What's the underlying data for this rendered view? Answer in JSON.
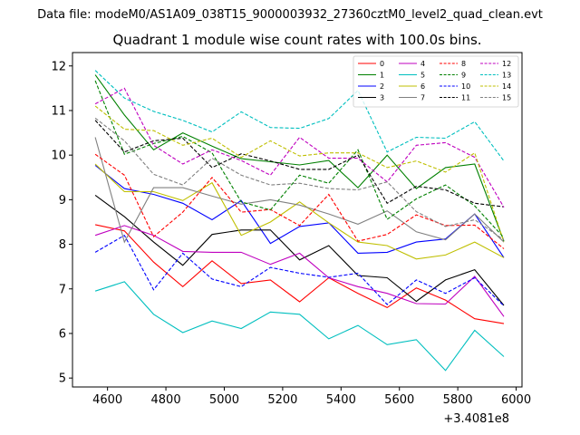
{
  "figure": {
    "suptitle": "Data file: modeM0/AS1A09_038T15_9000003932_27360cztM0_level2_quad_clean.evt"
  },
  "chart_data": {
    "type": "line",
    "title": "Quadrant 1 module wise count rates with 100.0s bins.",
    "xlabel": "",
    "ylabel": "",
    "x_offset_label": "+3.4081e8",
    "xlim": [
      4480,
      6020
    ],
    "ylim": [
      4.8,
      12.3
    ],
    "x_ticks": [
      4600,
      4800,
      5000,
      5200,
      5400,
      5600,
      5800,
      6000
    ],
    "y_ticks": [
      5,
      6,
      7,
      8,
      9,
      10,
      11,
      12
    ],
    "x": [
      4558,
      4658,
      4758,
      4858,
      4958,
      5058,
      5158,
      5258,
      5358,
      5458,
      5558,
      5658,
      5758,
      5858,
      5958
    ],
    "legend_position": "top-right",
    "series": [
      {
        "name": "0",
        "color": "#ff0000",
        "dash": "solid",
        "values": [
          8.44,
          8.3,
          7.6,
          7.05,
          7.63,
          7.12,
          7.2,
          6.71,
          7.25,
          6.9,
          6.58,
          7.02,
          6.75,
          6.33,
          6.22
        ]
      },
      {
        "name": "1",
        "color": "#008000",
        "dash": "solid",
        "values": [
          11.8,
          10.9,
          10.12,
          10.5,
          10.2,
          9.92,
          9.85,
          9.78,
          9.88,
          9.27,
          10.0,
          9.25,
          9.72,
          9.8,
          8.07
        ]
      },
      {
        "name": "2",
        "color": "#0000ff",
        "dash": "solid",
        "values": [
          9.77,
          9.25,
          9.12,
          8.92,
          8.55,
          8.98,
          8.02,
          8.4,
          8.48,
          7.8,
          7.82,
          8.05,
          8.12,
          8.68,
          7.7
        ]
      },
      {
        "name": "3",
        "color": "#000000",
        "dash": "solid",
        "values": [
          9.1,
          8.62,
          8.05,
          7.53,
          8.22,
          8.32,
          8.32,
          7.65,
          7.97,
          7.3,
          7.25,
          6.72,
          7.2,
          7.43,
          6.63
        ]
      },
      {
        "name": "4",
        "color": "#bf00bf",
        "dash": "solid",
        "values": [
          8.2,
          8.42,
          8.2,
          7.84,
          7.82,
          7.82,
          7.55,
          7.8,
          7.25,
          7.05,
          6.9,
          6.67,
          6.66,
          7.28,
          6.38
        ]
      },
      {
        "name": "5",
        "color": "#00bfbf",
        "dash": "solid",
        "values": [
          6.95,
          7.16,
          6.43,
          6.02,
          6.28,
          6.11,
          6.48,
          6.43,
          5.88,
          6.18,
          5.75,
          5.86,
          5.17,
          6.07,
          5.48
        ]
      },
      {
        "name": "6",
        "color": "#bfbf00",
        "dash": "solid",
        "values": [
          9.8,
          9.18,
          9.18,
          8.98,
          9.38,
          8.2,
          8.5,
          8.95,
          8.48,
          8.05,
          7.97,
          7.67,
          7.76,
          8.05,
          7.7
        ]
      },
      {
        "name": "7",
        "color": "#808080",
        "dash": "solid",
        "values": [
          10.4,
          8.05,
          9.27,
          9.27,
          9.08,
          8.9,
          9.0,
          8.88,
          8.68,
          8.45,
          8.75,
          8.28,
          8.1,
          8.68,
          8.05
        ]
      },
      {
        "name": "8",
        "color": "#ff0000",
        "dash": "dashed",
        "values": [
          10.02,
          9.55,
          8.17,
          8.72,
          9.5,
          8.72,
          8.78,
          8.42,
          9.12,
          8.07,
          8.22,
          8.66,
          8.42,
          8.43,
          7.9
        ]
      },
      {
        "name": "9",
        "color": "#008000",
        "dash": "dashed",
        "values": [
          11.67,
          10.02,
          10.26,
          10.42,
          10.05,
          8.95,
          8.77,
          9.55,
          9.37,
          10.12,
          8.56,
          9.02,
          9.33,
          8.86,
          8.15
        ]
      },
      {
        "name": "10",
        "color": "#0000ff",
        "dash": "dashed",
        "values": [
          7.82,
          8.2,
          6.98,
          7.8,
          7.22,
          7.05,
          7.48,
          7.35,
          7.26,
          7.35,
          6.65,
          7.2,
          6.9,
          7.25,
          6.62
        ]
      },
      {
        "name": "11",
        "color": "#000000",
        "dash": "dashed",
        "values": [
          10.78,
          10.07,
          10.32,
          10.38,
          9.72,
          10.03,
          9.87,
          9.68,
          9.68,
          10.0,
          8.92,
          9.3,
          9.22,
          8.92,
          8.84
        ]
      },
      {
        "name": "12",
        "color": "#bf00bf",
        "dash": "dashed",
        "values": [
          11.15,
          11.5,
          10.22,
          9.8,
          10.12,
          9.88,
          9.55,
          10.4,
          9.93,
          9.93,
          9.4,
          10.22,
          10.28,
          9.95,
          8.83
        ]
      },
      {
        "name": "13",
        "color": "#00bfbf",
        "dash": "dashed",
        "values": [
          11.9,
          11.28,
          10.98,
          10.78,
          10.52,
          10.97,
          10.62,
          10.6,
          10.82,
          11.45,
          10.07,
          10.4,
          10.38,
          10.75,
          9.87
        ]
      },
      {
        "name": "14",
        "color": "#bfbf00",
        "dash": "dashed",
        "values": [
          11.1,
          10.58,
          10.55,
          10.22,
          10.38,
          9.95,
          10.32,
          9.98,
          10.05,
          10.05,
          9.72,
          9.87,
          9.62,
          10.05,
          8.05
        ]
      },
      {
        "name": "15",
        "color": "#808080",
        "dash": "dashed",
        "values": [
          10.83,
          10.32,
          9.57,
          9.33,
          9.93,
          9.55,
          9.33,
          9.37,
          9.25,
          9.22,
          9.4,
          8.73,
          8.4,
          8.55,
          8.1
        ]
      }
    ]
  }
}
